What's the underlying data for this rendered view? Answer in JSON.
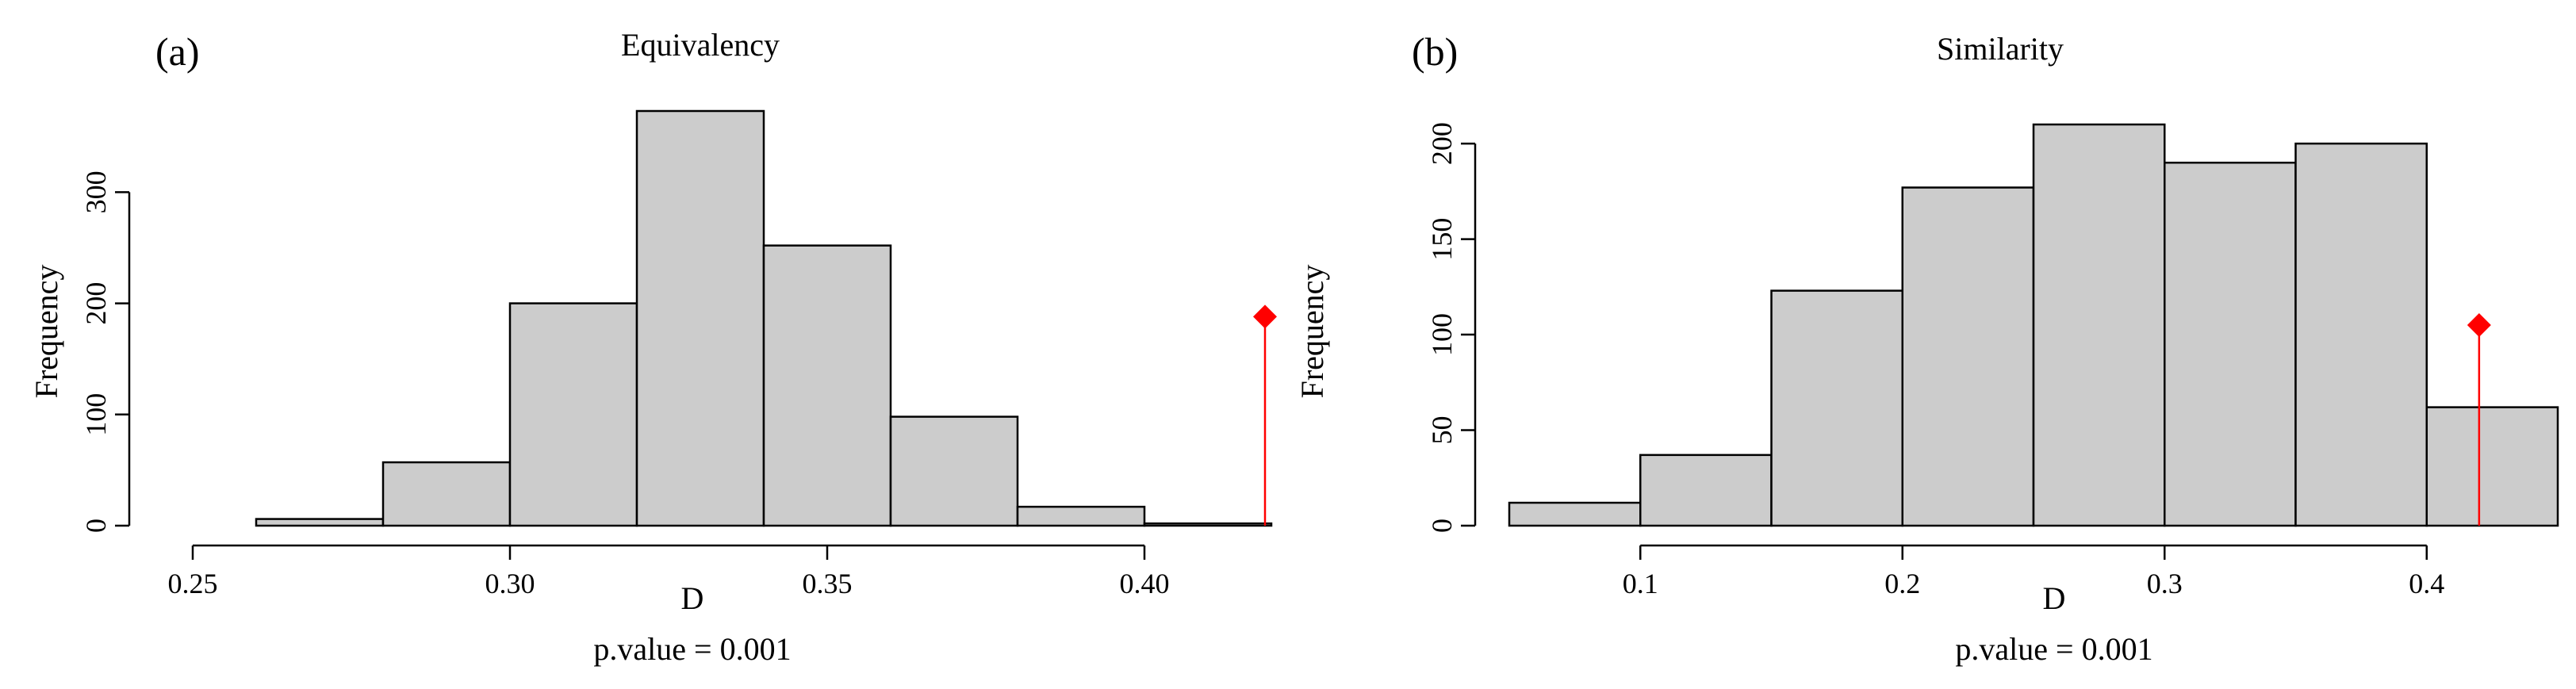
{
  "chart_data": [
    {
      "type": "bar",
      "panel_label": "(a)",
      "title": "Equivalency",
      "xlabel": "D",
      "ylabel": "Frequency",
      "p_value_text": "p.value =  0.001",
      "bin_edges": [
        0.26,
        0.28,
        0.3,
        0.32,
        0.34,
        0.36,
        0.38,
        0.4,
        0.42
      ],
      "values": [
        6,
        57,
        200,
        373,
        252,
        98,
        17,
        2
      ],
      "xlim": [
        0.25,
        0.42
      ],
      "ylim": [
        0,
        373
      ],
      "xticks": [
        0.25,
        0.3,
        0.35,
        0.4
      ],
      "xtick_labels": [
        "0.25",
        "0.30",
        "0.35",
        "0.40"
      ],
      "yticks": [
        0,
        100,
        200,
        300
      ],
      "ytick_labels": [
        "0",
        "100",
        "200",
        "300"
      ],
      "observed": {
        "x": 0.419,
        "y": 188,
        "color": "#ff0000"
      }
    },
    {
      "type": "bar",
      "panel_label": "(b)",
      "title": "Similarity",
      "xlabel": "D",
      "ylabel": "Frequency",
      "p_value_text": "p.value =  0.001",
      "bin_edges": [
        0.05,
        0.1,
        0.15,
        0.2,
        0.25,
        0.3,
        0.35,
        0.4,
        0.45
      ],
      "values": [
        12,
        37,
        123,
        177,
        210,
        190,
        200,
        62
      ],
      "xlim": [
        0.05,
        0.45
      ],
      "ylim": [
        0,
        210
      ],
      "xticks": [
        0.1,
        0.2,
        0.3,
        0.4
      ],
      "xtick_labels": [
        "0.1",
        "0.2",
        "0.3",
        "0.4"
      ],
      "yticks": [
        0,
        50,
        100,
        150,
        200
      ],
      "ytick_labels": [
        "0",
        "50",
        "100",
        "150",
        "200"
      ],
      "observed": {
        "x": 0.42,
        "y": 105,
        "color": "#ff0000"
      }
    }
  ]
}
